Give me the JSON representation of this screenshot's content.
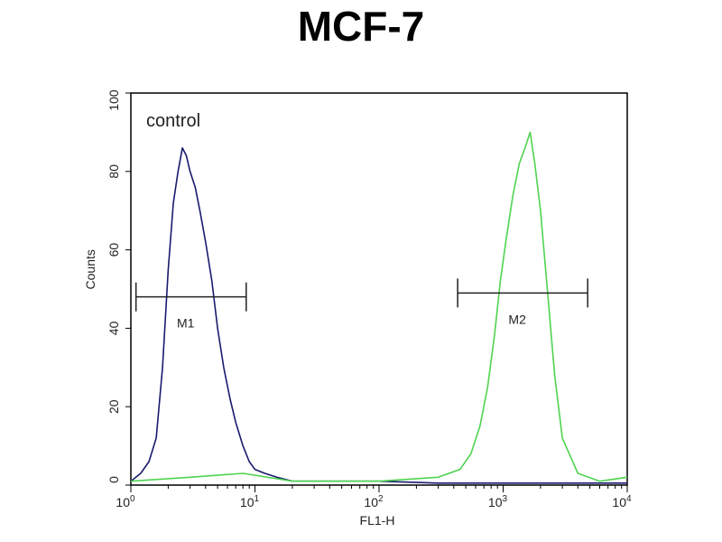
{
  "chart_data": {
    "type": "line",
    "title": "MCF-7",
    "xlabel": "FL1-H",
    "ylabel": "Counts",
    "x_scale": "log",
    "xlim": [
      1,
      10000
    ],
    "ylim": [
      0,
      100
    ],
    "x_ticks": [
      {
        "base": "10",
        "exp": "0",
        "value": 1
      },
      {
        "base": "10",
        "exp": "1",
        "value": 10
      },
      {
        "base": "10",
        "exp": "2",
        "value": 100
      },
      {
        "base": "10",
        "exp": "3",
        "value": 1000
      },
      {
        "base": "10",
        "exp": "4",
        "value": 10000
      }
    ],
    "y_ticks": [
      "0",
      "20",
      "40",
      "60",
      "80",
      "100"
    ],
    "grid": false,
    "annotation": "control",
    "series": [
      {
        "name": "control",
        "color": "#1a1a6e",
        "x": [
          1.0,
          1.2,
          1.4,
          1.6,
          1.8,
          2.0,
          2.2,
          2.4,
          2.6,
          2.8,
          3.0,
          3.3,
          3.6,
          4.0,
          4.5,
          5.0,
          5.6,
          6.3,
          7.0,
          8.0,
          9.0,
          10.0,
          12.0,
          15.0,
          20.0,
          40.0,
          100.0,
          300.0,
          1000.0,
          3000.0,
          10000.0
        ],
        "y": [
          1,
          3,
          6,
          12,
          30,
          55,
          72,
          80,
          86,
          84,
          80,
          76,
          70,
          62,
          52,
          40,
          30,
          22,
          16,
          10,
          6,
          4,
          3,
          2,
          1,
          1,
          1,
          0.5,
          0.5,
          0.5,
          0.5
        ]
      },
      {
        "name": "",
        "color": "#4fd34f",
        "x": [
          1.0,
          3.0,
          8.0,
          20.0,
          100.0,
          300.0,
          450.0,
          550.0,
          650.0,
          750.0,
          850.0,
          950.0,
          1050.0,
          1200.0,
          1350.0,
          1500.0,
          1650.0,
          1800.0,
          2000.0,
          2300.0,
          2600.0,
          3000.0,
          4000.0,
          6000.0,
          10000.0
        ],
        "y": [
          1,
          2,
          3,
          1,
          1,
          2,
          4,
          8,
          15,
          25,
          38,
          52,
          62,
          74,
          82,
          86,
          90,
          82,
          70,
          48,
          28,
          12,
          3,
          1,
          2
        ]
      }
    ],
    "gates": [
      {
        "label": "M1",
        "x1": 1.1,
        "x2": 8.5,
        "y": 48
      },
      {
        "label": "M2",
        "x1": 430,
        "x2": 4800,
        "y": 49
      }
    ]
  }
}
